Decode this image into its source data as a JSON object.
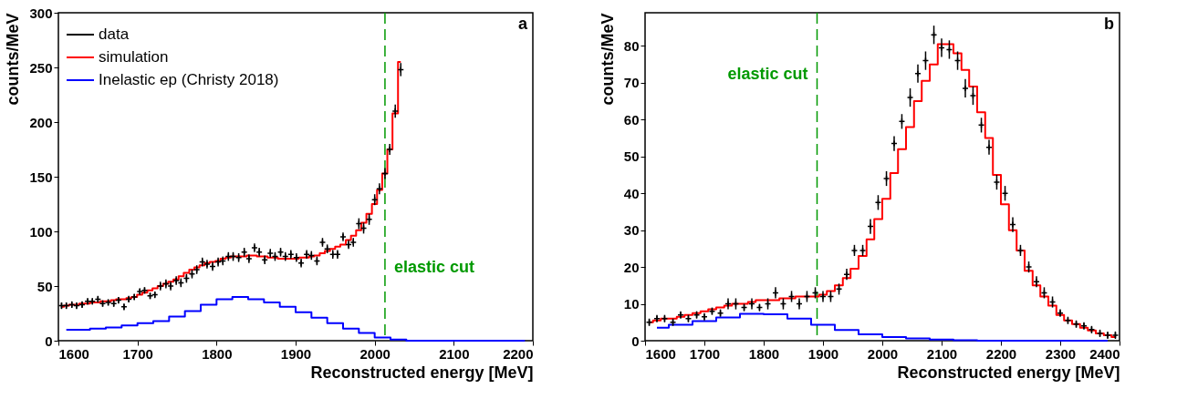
{
  "chart_data": [
    {
      "type": "step",
      "xlabel": "Reconstructed energy [MeV]",
      "ylabel": "counts/MeV",
      "xlim": [
        1600,
        2200
      ],
      "ylim": [
        0,
        300
      ],
      "xticks": [
        1600,
        1700,
        1800,
        1900,
        2000,
        2100,
        2200
      ],
      "yticks": [
        0,
        50,
        100,
        150,
        200,
        250,
        300
      ],
      "legend": "top left",
      "annotations": [
        "a"
      ],
      "series": [
        {
          "name": "data",
          "type": "scatter",
          "marker": "cross",
          "color": "#000000",
          "x": [
            1604,
            1610,
            1617,
            1623,
            1630,
            1637,
            1643,
            1650,
            1656,
            1663,
            1670,
            1676,
            1683,
            1689,
            1696,
            1703,
            1709,
            1716,
            1722,
            1729,
            1736,
            1742,
            1749,
            1755,
            1762,
            1769,
            1775,
            1782,
            1788,
            1795,
            1802,
            1808,
            1815,
            1821,
            1828,
            1835,
            1841,
            1848,
            1854,
            1861,
            1868,
            1874,
            1881,
            1887,
            1894,
            1901,
            1907,
            1914,
            1920,
            1927,
            1934,
            1940,
            1947,
            1953,
            1960,
            1967,
            1973,
            1980,
            1986,
            1993,
            2000,
            2006,
            2013,
            2019,
            2026,
            2033
          ],
          "values": [
            32,
            32,
            33,
            32,
            33,
            36,
            36,
            38,
            34,
            35,
            34,
            37,
            31,
            38,
            40,
            45,
            46,
            41,
            42,
            50,
            52,
            50,
            55,
            53,
            57,
            61,
            65,
            72,
            70,
            68,
            72,
            73,
            77,
            77,
            76,
            81,
            75,
            85,
            81,
            74,
            80,
            77,
            81,
            77,
            79,
            76,
            71,
            79,
            78,
            73,
            90,
            84,
            79,
            79,
            95,
            88,
            90,
            107,
            103,
            111,
            129,
            139,
            153,
            175,
            210,
            248
          ],
          "errors": [
            3,
            3,
            3,
            3,
            3,
            3,
            3,
            3,
            3,
            3,
            3,
            3,
            3,
            3,
            3,
            3,
            3,
            3,
            3,
            4,
            4,
            4,
            4,
            4,
            4,
            4,
            4,
            4,
            4,
            4,
            4,
            4,
            4,
            4,
            4,
            4,
            4,
            4,
            4,
            4,
            4,
            4,
            4,
            4,
            4,
            4,
            4,
            4,
            4,
            4,
            4,
            4,
            4,
            4,
            4,
            4,
            4,
            5,
            5,
            5,
            5,
            5,
            5,
            5,
            6,
            6
          ]
        },
        {
          "name": "simulation",
          "color": "#ff0000",
          "x": [
            1604,
            1610,
            1617,
            1623,
            1630,
            1637,
            1643,
            1650,
            1656,
            1663,
            1670,
            1676,
            1683,
            1689,
            1696,
            1703,
            1709,
            1716,
            1722,
            1729,
            1736,
            1742,
            1749,
            1755,
            1762,
            1769,
            1775,
            1782,
            1788,
            1795,
            1802,
            1808,
            1815,
            1821,
            1828,
            1835,
            1841,
            1848,
            1854,
            1861,
            1868,
            1874,
            1881,
            1887,
            1894,
            1901,
            1907,
            1914,
            1920,
            1927,
            1934,
            1940,
            1947,
            1953,
            1960,
            1967,
            1973,
            1980,
            1986,
            1993,
            2000,
            2006,
            2013,
            2019,
            2026,
            2033
          ],
          "values": [
            31,
            32,
            33,
            33,
            34,
            34,
            35,
            35,
            36,
            36,
            37,
            38,
            38,
            39,
            40,
            42,
            44,
            46,
            48,
            50,
            52,
            54,
            56,
            59,
            62,
            65,
            67,
            69,
            71,
            72,
            73,
            75,
            76,
            77,
            77,
            77,
            78,
            78,
            77,
            77,
            76,
            76,
            75,
            75,
            75,
            75,
            76,
            76,
            77,
            78,
            80,
            82,
            84,
            86,
            88,
            92,
            96,
            101,
            108,
            116,
            125,
            138,
            153,
            175,
            208,
            255
          ]
        },
        {
          "name": "Inelastic ep (Christy 2018)",
          "color": "#0000ff",
          "x": [
            1610,
            1630,
            1650,
            1670,
            1690,
            1710,
            1730,
            1750,
            1770,
            1790,
            1810,
            1830,
            1850,
            1870,
            1890,
            1910,
            1930,
            1950,
            1970,
            1990,
            2010,
            2030,
            2050,
            2070,
            2090,
            2110,
            2130,
            2150,
            2170,
            2190
          ],
          "values": [
            10,
            10,
            11,
            12,
            14,
            16,
            18,
            22,
            27,
            33,
            38,
            40,
            38,
            35,
            31,
            26,
            21,
            16,
            11,
            7,
            3,
            1,
            0,
            0,
            0,
            0,
            0,
            0,
            0,
            0
          ]
        }
      ],
      "ref_lines": [
        {
          "axis": "x",
          "value": 2013,
          "label": "elastic cut",
          "color": "#009900",
          "line_style": "dashed"
        }
      ]
    },
    {
      "type": "step",
      "xlabel": "Reconstructed energy [MeV]",
      "ylabel": "counts/MeV",
      "xlim": [
        1600,
        2400
      ],
      "ylim": [
        0,
        89
      ],
      "xticks": [
        1600,
        1700,
        1800,
        1900,
        2000,
        2100,
        2200,
        2300,
        2400
      ],
      "yticks": [
        0,
        10,
        20,
        30,
        40,
        50,
        60,
        70,
        80
      ],
      "annotations": [
        "b"
      ],
      "series": [
        {
          "type": "scatter",
          "marker": "cross",
          "color": "#000000",
          "x": [
            1607,
            1620,
            1633,
            1647,
            1660,
            1673,
            1687,
            1700,
            1713,
            1727,
            1740,
            1753,
            1767,
            1780,
            1793,
            1807,
            1820,
            1833,
            1847,
            1860,
            1873,
            1887,
            1900,
            1913,
            1927,
            1940,
            1953,
            1967,
            1980,
            1993,
            2007,
            2020,
            2033,
            2047,
            2060,
            2073,
            2087,
            2100,
            2113,
            2127,
            2140,
            2153,
            2167,
            2180,
            2193,
            2207,
            2220,
            2233,
            2247,
            2260,
            2273,
            2287,
            2300,
            2313,
            2327,
            2340,
            2353,
            2367,
            2380,
            2393
          ],
          "values": [
            5,
            6,
            6,
            5,
            7,
            6,
            7,
            6.5,
            8,
            7.5,
            10,
            10,
            9,
            10,
            9,
            10,
            13,
            10,
            12,
            10,
            12,
            13,
            12,
            12,
            14,
            18,
            24.5,
            24.5,
            31,
            37.5,
            44,
            53.5,
            59.5,
            66,
            72.5,
            76,
            83,
            79.5,
            79,
            76,
            68.5,
            66.5,
            58.5,
            52.5,
            43,
            40,
            31.5,
            24.5,
            20,
            16,
            13,
            10.5,
            7.5,
            5.5,
            4.5,
            4,
            3,
            2,
            1.5,
            1.5
          ],
          "errors": [
            1,
            1,
            1,
            1,
            1,
            1,
            1,
            1,
            1,
            1,
            1.5,
            1.5,
            1,
            1.5,
            1,
            1.5,
            1.5,
            1.5,
            1.5,
            1.5,
            1.5,
            1.5,
            1.5,
            1.5,
            1.5,
            1.5,
            1.5,
            1.5,
            2,
            2,
            2,
            2,
            2,
            2.5,
            2.5,
            2.5,
            2.5,
            2.5,
            2.5,
            2.5,
            2.5,
            2.5,
            2,
            2,
            2,
            2,
            2,
            1.5,
            1.5,
            1.5,
            1.5,
            1.5,
            1,
            1,
            1,
            1,
            1,
            1,
            1,
            1
          ]
        },
        {
          "color": "#ff0000",
          "x": [
            1607,
            1620,
            1633,
            1647,
            1660,
            1673,
            1687,
            1700,
            1713,
            1727,
            1740,
            1753,
            1767,
            1780,
            1793,
            1807,
            1820,
            1833,
            1847,
            1860,
            1873,
            1887,
            1900,
            1913,
            1927,
            1940,
            1953,
            1967,
            1980,
            1993,
            2007,
            2020,
            2033,
            2047,
            2060,
            2073,
            2087,
            2100,
            2113,
            2127,
            2140,
            2153,
            2167,
            2180,
            2193,
            2207,
            2220,
            2233,
            2247,
            2260,
            2273,
            2287,
            2300,
            2313,
            2327,
            2340,
            2353,
            2367,
            2380,
            2393
          ],
          "values": [
            5,
            5.5,
            6,
            6,
            6.5,
            7,
            7.5,
            8,
            8.5,
            9,
            9.5,
            10,
            10,
            10.5,
            11,
            11,
            11,
            11.5,
            11.5,
            12,
            12,
            12,
            12.5,
            13.5,
            15,
            17,
            19.5,
            23,
            27.5,
            33,
            38.5,
            45.5,
            52,
            58,
            65,
            70.5,
            75,
            80.5,
            80.5,
            78,
            73.5,
            69,
            62,
            55,
            45,
            37,
            30,
            24.5,
            19,
            15,
            12,
            9.5,
            7,
            5.5,
            4.5,
            3.5,
            2.8,
            2,
            1.5,
            1
          ]
        },
        {
          "color": "#0000ff",
          "x": [
            1620,
            1660,
            1700,
            1740,
            1780,
            1820,
            1860,
            1900,
            1940,
            1980,
            2020,
            2060,
            2100,
            2140,
            2180,
            2220,
            2260,
            2300,
            2340,
            2380
          ],
          "values": [
            3.5,
            4.3,
            5.3,
            6.3,
            7.3,
            7.2,
            6,
            4.3,
            2.9,
            1.7,
            1,
            0.6,
            0.3,
            0.1,
            0,
            0,
            0,
            0,
            0,
            0
          ]
        }
      ],
      "ref_lines": [
        {
          "axis": "x",
          "value": 1890,
          "label": "elastic cut",
          "color": "#009900",
          "line_style": "dashed"
        }
      ]
    }
  ]
}
